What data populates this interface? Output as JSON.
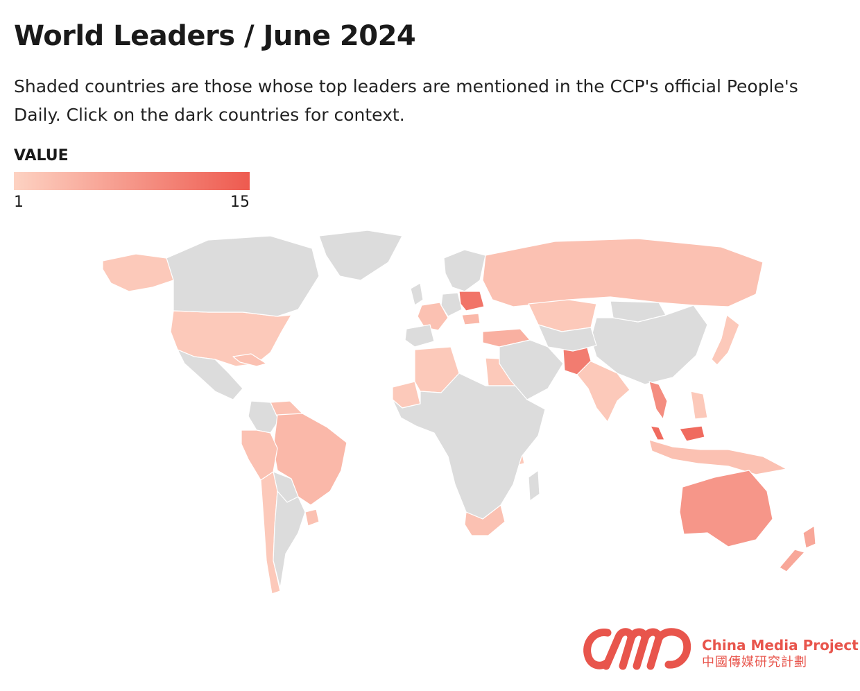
{
  "header": {
    "title": "World Leaders / June 2024",
    "subtitle": "Shaded countries are those whose top leaders are mentioned in the CCP's official People's Daily. Click on the dark countries for context."
  },
  "legend": {
    "title": "VALUE",
    "min_label": "1",
    "max_label": "15",
    "min_value": 1,
    "max_value": 15,
    "color_low": "#fdd2c2",
    "color_high": "#ee5a4f"
  },
  "map": {
    "base_color": "#dcdcdc",
    "countries": [
      {
        "name": "United States",
        "value": 2
      },
      {
        "name": "Canada"
      },
      {
        "name": "Alaska (United States)",
        "value": 2
      },
      {
        "name": "Greenland"
      },
      {
        "name": "Mexico"
      },
      {
        "name": "Cuba",
        "value": 3
      },
      {
        "name": "Venezuela",
        "value": 3
      },
      {
        "name": "Colombia"
      },
      {
        "name": "Brazil",
        "value": 4
      },
      {
        "name": "Peru",
        "value": 3
      },
      {
        "name": "Bolivia"
      },
      {
        "name": "Chile",
        "value": 2
      },
      {
        "name": "Argentina"
      },
      {
        "name": "Uruguay",
        "value": 3
      },
      {
        "name": "France",
        "value": 3
      },
      {
        "name": "Spain"
      },
      {
        "name": "Germany"
      },
      {
        "name": "Poland",
        "value": 12
      },
      {
        "name": "Hungary",
        "value": 4
      },
      {
        "name": "Turkey",
        "value": 5
      },
      {
        "name": "Russia",
        "value": 3
      },
      {
        "name": "Kazakhstan",
        "value": 2
      },
      {
        "name": "China"
      },
      {
        "name": "Mongolia"
      },
      {
        "name": "Japan",
        "value": 2
      },
      {
        "name": "India",
        "value": 2
      },
      {
        "name": "Pakistan",
        "value": 11
      },
      {
        "name": "Vietnam",
        "value": 9
      },
      {
        "name": "Malaysia",
        "value": 13
      },
      {
        "name": "Indonesia",
        "value": 3
      },
      {
        "name": "Philippines",
        "value": 2
      },
      {
        "name": "Australia",
        "value": 8
      },
      {
        "name": "New Zealand",
        "value": 6
      },
      {
        "name": "Algeria",
        "value": 2
      },
      {
        "name": "Mauritania",
        "value": 2
      },
      {
        "name": "Egypt",
        "value": 2
      },
      {
        "name": "Nigeria",
        "value": 2
      },
      {
        "name": "DR Congo",
        "value": 2
      },
      {
        "name": "Tanzania",
        "value": 2
      },
      {
        "name": "South Africa",
        "value": 3
      },
      {
        "name": "Africa (other)"
      },
      {
        "name": "Middle East (other)"
      },
      {
        "name": "Central Asia (other)"
      },
      {
        "name": "Madagascar"
      },
      {
        "name": "United Kingdom"
      },
      {
        "name": "Scandinavia"
      }
    ]
  },
  "branding": {
    "name": "China Media Project",
    "name_cn": "中國傳媒研究計劃",
    "color": "#e8554c"
  }
}
